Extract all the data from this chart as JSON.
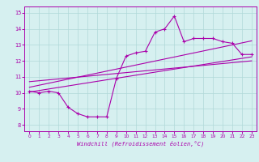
{
  "xlabel": "Windchill (Refroidissement éolien,°C)",
  "bg_color": "#d6f0f0",
  "grid_color": "#b0d8d8",
  "line_color": "#aa00aa",
  "x_ticks": [
    0,
    1,
    2,
    3,
    4,
    5,
    6,
    7,
    8,
    9,
    10,
    11,
    12,
    13,
    14,
    15,
    16,
    17,
    18,
    19,
    20,
    21,
    22,
    23
  ],
  "y_ticks": [
    8,
    9,
    10,
    11,
    12,
    13,
    14,
    15
  ],
  "ylim": [
    7.6,
    15.4
  ],
  "xlim": [
    -0.5,
    23.5
  ],
  "main_x": [
    0,
    1,
    2,
    3,
    4,
    5,
    6,
    7,
    8,
    9,
    10,
    11,
    12,
    13,
    14,
    15,
    16,
    17,
    18,
    19,
    20,
    21,
    22,
    23
  ],
  "main_y": [
    10.1,
    10.0,
    10.1,
    10.0,
    9.1,
    8.7,
    8.5,
    8.5,
    8.5,
    10.9,
    12.3,
    12.5,
    12.6,
    13.8,
    14.0,
    14.8,
    13.2,
    13.4,
    13.4,
    13.4,
    13.2,
    13.1,
    12.4,
    12.4
  ],
  "trend1_x": [
    0,
    23
  ],
  "trend1_y": [
    10.05,
    12.25
  ],
  "trend2_x": [
    0,
    23
  ],
  "trend2_y": [
    10.35,
    13.25
  ],
  "trend3_x": [
    0,
    23
  ],
  "trend3_y": [
    10.7,
    12.0
  ]
}
